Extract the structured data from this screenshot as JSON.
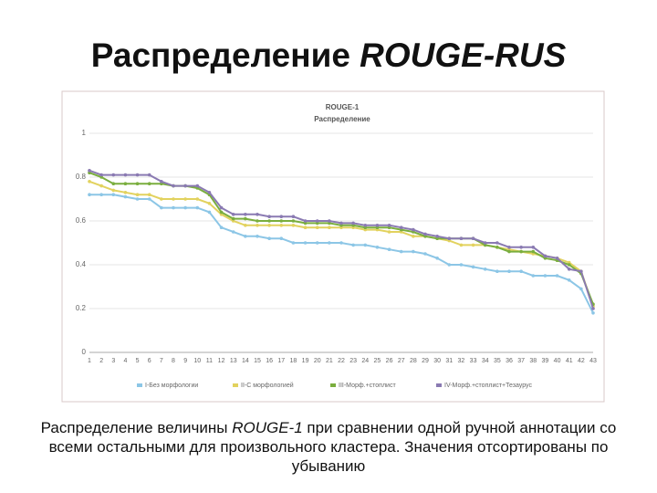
{
  "header": {
    "title_plain": "Распределение",
    "title_italic": "ROUGE-RUS"
  },
  "chart_data": {
    "type": "line",
    "title": "ROUGE-1",
    "subtitle": "Распределение",
    "categories": [
      "1",
      "2",
      "3",
      "4",
      "5",
      "6",
      "7",
      "8",
      "9",
      "10",
      "11",
      "12",
      "13",
      "14",
      "15",
      "16",
      "17",
      "18",
      "19",
      "20",
      "21",
      "22",
      "23",
      "24",
      "25",
      "26",
      "27",
      "28",
      "29",
      "30",
      "31",
      "32",
      "33",
      "34",
      "35",
      "36",
      "37",
      "38",
      "39",
      "40",
      "41",
      "42",
      "43"
    ],
    "series": [
      {
        "name": "I-Без морфологии",
        "color": "#8cc6e6",
        "values": [
          0.72,
          0.72,
          0.72,
          0.71,
          0.7,
          0.7,
          0.66,
          0.66,
          0.66,
          0.66,
          0.64,
          0.57,
          0.55,
          0.53,
          0.53,
          0.52,
          0.52,
          0.5,
          0.5,
          0.5,
          0.5,
          0.5,
          0.49,
          0.49,
          0.48,
          0.47,
          0.46,
          0.46,
          0.45,
          0.43,
          0.4,
          0.4,
          0.39,
          0.38,
          0.37,
          0.37,
          0.37,
          0.35,
          0.35,
          0.35,
          0.33,
          0.29,
          0.18
        ]
      },
      {
        "name": "II-С морфологией",
        "color": "#e2d25e",
        "values": [
          0.78,
          0.76,
          0.74,
          0.73,
          0.72,
          0.72,
          0.7,
          0.7,
          0.7,
          0.7,
          0.68,
          0.63,
          0.6,
          0.58,
          0.58,
          0.58,
          0.58,
          0.58,
          0.57,
          0.57,
          0.57,
          0.57,
          0.57,
          0.56,
          0.56,
          0.55,
          0.55,
          0.53,
          0.53,
          0.52,
          0.51,
          0.49,
          0.49,
          0.49,
          0.48,
          0.47,
          0.46,
          0.45,
          0.44,
          0.43,
          0.41,
          0.37,
          0.21
        ]
      },
      {
        "name": "III-Морф.+стоплист",
        "color": "#7aae3e",
        "values": [
          0.82,
          0.8,
          0.77,
          0.77,
          0.77,
          0.77,
          0.77,
          0.76,
          0.76,
          0.75,
          0.72,
          0.64,
          0.61,
          0.61,
          0.6,
          0.6,
          0.6,
          0.6,
          0.59,
          0.59,
          0.59,
          0.58,
          0.58,
          0.57,
          0.57,
          0.57,
          0.56,
          0.55,
          0.53,
          0.52,
          0.52,
          0.52,
          0.52,
          0.49,
          0.48,
          0.46,
          0.46,
          0.46,
          0.43,
          0.42,
          0.4,
          0.36,
          0.22
        ]
      },
      {
        "name": "IV-Морф.+стоплист+Тезаурус",
        "color": "#8a7ab2",
        "values": [
          0.83,
          0.81,
          0.81,
          0.81,
          0.81,
          0.81,
          0.78,
          0.76,
          0.76,
          0.76,
          0.73,
          0.66,
          0.63,
          0.63,
          0.63,
          0.62,
          0.62,
          0.62,
          0.6,
          0.6,
          0.6,
          0.59,
          0.59,
          0.58,
          0.58,
          0.58,
          0.57,
          0.56,
          0.54,
          0.53,
          0.52,
          0.52,
          0.52,
          0.5,
          0.5,
          0.48,
          0.48,
          0.48,
          0.44,
          0.43,
          0.38,
          0.37,
          0.2
        ]
      }
    ],
    "ylim": [
      0,
      1
    ],
    "yticks": [
      0,
      0.2,
      0.4,
      0.6,
      0.8,
      1
    ],
    "grid": true
  },
  "caption": {
    "before": "Распределение величины ",
    "italic": "ROUGE-1",
    "after": " при сравнении одной ручной аннотации со всеми остальными для произвольного кластера. Значения отсортированы по убыванию"
  }
}
